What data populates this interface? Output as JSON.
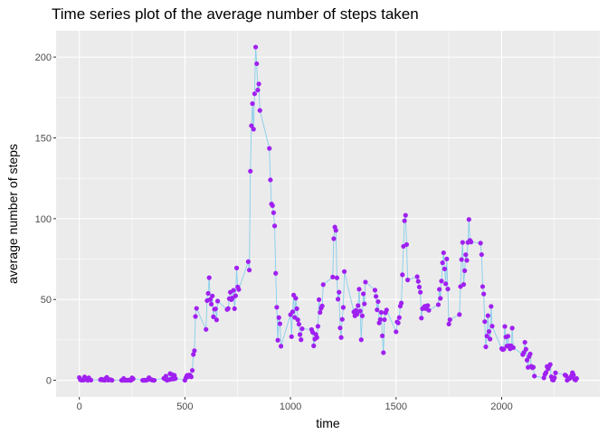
{
  "chart_data": {
    "type": "line",
    "title": "Time series plot of the average number of steps taken",
    "xlabel": "time",
    "ylabel": "average number of steps",
    "xlim": [
      -110,
      2465
    ],
    "ylim": [
      -10.3,
      216.3
    ],
    "xticks": [
      0,
      500,
      1000,
      1500,
      2000
    ],
    "yticks": [
      0,
      50,
      100,
      150,
      200
    ],
    "grid": true,
    "colors": {
      "panel": "#ebebeb",
      "grid": "#ffffff",
      "line": "#87ceeb",
      "point": "#a020f0"
    },
    "series": [
      {
        "markers": true,
        "points": [
          [
            0,
            1.7
          ],
          [
            5,
            0.3
          ],
          [
            10,
            0.1
          ],
          [
            15,
            0.2
          ],
          [
            20,
            0.1
          ],
          [
            25,
            2.1
          ],
          [
            30,
            0.5
          ],
          [
            35,
            0.9
          ],
          [
            40,
            0.0
          ],
          [
            45,
            1.5
          ],
          [
            50,
            0.3
          ],
          [
            55,
            0.1
          ],
          [
            100,
            0.3
          ],
          [
            105,
            0.7
          ],
          [
            110,
            0.2
          ],
          [
            115,
            0.3
          ],
          [
            120,
            0.0
          ],
          [
            125,
            1.1
          ],
          [
            130,
            1.8
          ],
          [
            135,
            0.2
          ],
          [
            140,
            0.2
          ],
          [
            145,
            0.4
          ],
          [
            150,
            0.3
          ],
          [
            155,
            0.0
          ],
          [
            200,
            0.0
          ],
          [
            205,
            0.0
          ],
          [
            210,
            1.1
          ],
          [
            215,
            0.0
          ],
          [
            220,
            0.0
          ],
          [
            225,
            0.1
          ],
          [
            230,
            0.0
          ],
          [
            235,
            0.2
          ],
          [
            240,
            0.0
          ],
          [
            245,
            0.0
          ],
          [
            250,
            1.5
          ],
          [
            255,
            0.9
          ],
          [
            300,
            0.0
          ],
          [
            305,
            0.0
          ],
          [
            310,
            0.0
          ],
          [
            315,
            0.0
          ],
          [
            320,
            0.2
          ],
          [
            325,
            0.6
          ],
          [
            330,
            1.6
          ],
          [
            335,
            0.6
          ],
          [
            340,
            0.5
          ],
          [
            345,
            0.1
          ],
          [
            350,
            0.0
          ],
          [
            355,
            0.0
          ],
          [
            400,
            1.2
          ],
          [
            405,
            0.9
          ],
          [
            410,
            2.6
          ],
          [
            415,
            0.0
          ],
          [
            420,
            0.3
          ],
          [
            425,
            0.4
          ],
          [
            430,
            4.1
          ],
          [
            435,
            0.7
          ],
          [
            440,
            3.5
          ],
          [
            445,
            0.8
          ],
          [
            450,
            3.1
          ],
          [
            455,
            1.1
          ],
          [
            500,
            0.0
          ],
          [
            505,
            1.6
          ],
          [
            510,
            3.0
          ],
          [
            515,
            2.2
          ],
          [
            520,
            3.3
          ],
          [
            525,
            3.0
          ],
          [
            530,
            2.1
          ],
          [
            535,
            6.1
          ],
          [
            540,
            16.0
          ],
          [
            545,
            18.3
          ],
          [
            550,
            39.5
          ],
          [
            555,
            44.5
          ],
          [
            600,
            31.5
          ],
          [
            605,
            49.3
          ],
          [
            610,
            53.8
          ],
          [
            615,
            63.5
          ],
          [
            620,
            50.0
          ],
          [
            625,
            47.1
          ],
          [
            630,
            52.2
          ],
          [
            635,
            39.3
          ],
          [
            640,
            44.0
          ],
          [
            645,
            44.2
          ],
          [
            650,
            37.4
          ],
          [
            655,
            49.0
          ],
          [
            700,
            43.8
          ],
          [
            705,
            44.4
          ],
          [
            710,
            50.5
          ],
          [
            715,
            54.5
          ],
          [
            720,
            49.9
          ],
          [
            725,
            50.9
          ],
          [
            730,
            55.7
          ],
          [
            735,
            44.3
          ],
          [
            740,
            52.3
          ],
          [
            745,
            69.5
          ],
          [
            750,
            57.8
          ],
          [
            755,
            56.2
          ],
          [
            800,
            73.4
          ],
          [
            805,
            68.2
          ],
          [
            810,
            129.4
          ],
          [
            815,
            157.5
          ],
          [
            820,
            171.2
          ],
          [
            825,
            155.4
          ],
          [
            830,
            177.3
          ],
          [
            835,
            206.2
          ],
          [
            840,
            195.9
          ],
          [
            845,
            179.6
          ],
          [
            850,
            183.4
          ],
          [
            855,
            167.0
          ],
          [
            900,
            143.5
          ],
          [
            905,
            124.0
          ],
          [
            910,
            109.1
          ],
          [
            915,
            108.1
          ],
          [
            920,
            103.7
          ],
          [
            925,
            95.5
          ],
          [
            930,
            66.2
          ],
          [
            935,
            45.2
          ],
          [
            940,
            24.8
          ],
          [
            945,
            38.8
          ],
          [
            950,
            35.0
          ],
          [
            955,
            21.1
          ],
          [
            1000,
            40.6
          ],
          [
            1005,
            27.0
          ],
          [
            1010,
            42.4
          ],
          [
            1015,
            52.7
          ],
          [
            1020,
            38.9
          ],
          [
            1025,
            50.8
          ],
          [
            1030,
            44.3
          ],
          [
            1035,
            37.4
          ],
          [
            1040,
            34.7
          ],
          [
            1045,
            28.3
          ],
          [
            1050,
            25.1
          ],
          [
            1055,
            31.9
          ],
          [
            1100,
            31.4
          ],
          [
            1105,
            29.7
          ],
          [
            1110,
            21.3
          ],
          [
            1115,
            25.5
          ],
          [
            1120,
            28.4
          ],
          [
            1125,
            26.5
          ],
          [
            1130,
            33.4
          ],
          [
            1135,
            49.9
          ],
          [
            1140,
            42.0
          ],
          [
            1145,
            44.6
          ],
          [
            1150,
            46.0
          ],
          [
            1155,
            59.2
          ],
          [
            1200,
            63.9
          ],
          [
            1205,
            87.6
          ],
          [
            1210,
            94.8
          ],
          [
            1215,
            92.8
          ],
          [
            1220,
            63.4
          ],
          [
            1225,
            50.2
          ],
          [
            1230,
            54.5
          ],
          [
            1235,
            32.4
          ],
          [
            1240,
            26.5
          ],
          [
            1245,
            37.7
          ],
          [
            1250,
            45.1
          ],
          [
            1255,
            67.3
          ],
          [
            1300,
            42.3
          ],
          [
            1305,
            39.9
          ],
          [
            1310,
            43.3
          ],
          [
            1315,
            40.9
          ],
          [
            1320,
            46.2
          ],
          [
            1325,
            56.4
          ],
          [
            1330,
            42.8
          ],
          [
            1335,
            25.1
          ],
          [
            1340,
            39.9
          ],
          [
            1345,
            53.5
          ],
          [
            1350,
            47.3
          ],
          [
            1355,
            60.8
          ],
          [
            1400,
            55.8
          ],
          [
            1405,
            51.9
          ],
          [
            1410,
            43.6
          ],
          [
            1415,
            48.7
          ],
          [
            1420,
            35.5
          ],
          [
            1425,
            37.6
          ],
          [
            1430,
            42.0
          ],
          [
            1435,
            27.5
          ],
          [
            1440,
            17.1
          ],
          [
            1445,
            37.5
          ],
          [
            1450,
            41.8
          ],
          [
            1455,
            43.5
          ],
          [
            1500,
            30.0
          ],
          [
            1505,
            36.1
          ],
          [
            1510,
            35.5
          ],
          [
            1515,
            38.8
          ],
          [
            1520,
            45.9
          ],
          [
            1525,
            47.8
          ],
          [
            1530,
            65.3
          ],
          [
            1535,
            82.9
          ],
          [
            1540,
            98.7
          ],
          [
            1545,
            102.1
          ],
          [
            1550,
            84.0
          ],
          [
            1555,
            62.1
          ],
          [
            1600,
            64.1
          ],
          [
            1605,
            61.2
          ],
          [
            1610,
            57.7
          ],
          [
            1615,
            54.5
          ],
          [
            1620,
            38.5
          ],
          [
            1625,
            44.3
          ],
          [
            1630,
            44.6
          ],
          [
            1635,
            45.7
          ],
          [
            1640,
            44.4
          ],
          [
            1645,
            46.0
          ],
          [
            1650,
            46.2
          ],
          [
            1655,
            43.3
          ],
          [
            1700,
            46.8
          ],
          [
            1705,
            56.3
          ],
          [
            1710,
            50.7
          ],
          [
            1715,
            61.4
          ],
          [
            1720,
            72.7
          ],
          [
            1725,
            78.9
          ],
          [
            1730,
            68.9
          ],
          [
            1735,
            59.7
          ],
          [
            1740,
            75.1
          ],
          [
            1745,
            56.5
          ],
          [
            1750,
            34.8
          ],
          [
            1755,
            37.5
          ],
          [
            1800,
            40.7
          ],
          [
            1805,
            58.0
          ],
          [
            1810,
            74.7
          ],
          [
            1815,
            85.3
          ],
          [
            1820,
            59.3
          ],
          [
            1825,
            67.8
          ],
          [
            1830,
            77.7
          ],
          [
            1835,
            74.2
          ],
          [
            1840,
            85.3
          ],
          [
            1845,
            99.5
          ],
          [
            1850,
            86.6
          ],
          [
            1855,
            85.6
          ],
          [
            1900,
            84.9
          ],
          [
            1905,
            77.8
          ],
          [
            1910,
            58.0
          ],
          [
            1915,
            53.4
          ],
          [
            1920,
            36.3
          ],
          [
            1925,
            20.7
          ],
          [
            1930,
            27.4
          ],
          [
            1935,
            40.0
          ],
          [
            1940,
            30.2
          ],
          [
            1945,
            25.5
          ],
          [
            1950,
            45.7
          ],
          [
            1955,
            33.5
          ],
          [
            2000,
            19.6
          ],
          [
            2005,
            19.0
          ],
          [
            2010,
            19.3
          ],
          [
            2015,
            33.3
          ],
          [
            2020,
            26.8
          ],
          [
            2025,
            21.2
          ],
          [
            2030,
            27.3
          ],
          [
            2035,
            21.3
          ],
          [
            2040,
            19.5
          ],
          [
            2045,
            21.3
          ],
          [
            2050,
            32.3
          ],
          [
            2055,
            20.2
          ],
          [
            2100,
            15.9
          ],
          [
            2105,
            17.2
          ],
          [
            2110,
            23.5
          ],
          [
            2115,
            19.2
          ],
          [
            2120,
            12.5
          ],
          [
            2125,
            8.0
          ],
          [
            2130,
            14.7
          ],
          [
            2135,
            16.3
          ],
          [
            2140,
            8.7
          ],
          [
            2145,
            7.8
          ],
          [
            2150,
            8.1
          ],
          [
            2155,
            2.6
          ],
          [
            2200,
            1.5
          ],
          [
            2205,
            3.7
          ],
          [
            2210,
            4.8
          ],
          [
            2215,
            8.5
          ],
          [
            2220,
            7.1
          ],
          [
            2225,
            8.7
          ],
          [
            2230,
            9.8
          ],
          [
            2235,
            2.2
          ],
          [
            2240,
            0.3
          ],
          [
            2245,
            0.1
          ],
          [
            2250,
            1.6
          ],
          [
            2255,
            4.6
          ],
          [
            2300,
            3.3
          ],
          [
            2305,
            2.8
          ],
          [
            2310,
            0.0
          ],
          [
            2315,
            0.8
          ],
          [
            2320,
            1.0
          ],
          [
            2325,
            1.6
          ],
          [
            2330,
            2.6
          ],
          [
            2335,
            4.7
          ],
          [
            2340,
            3.3
          ],
          [
            2345,
            0.6
          ],
          [
            2350,
            0.2
          ],
          [
            2355,
            1.1
          ]
        ]
      }
    ]
  }
}
